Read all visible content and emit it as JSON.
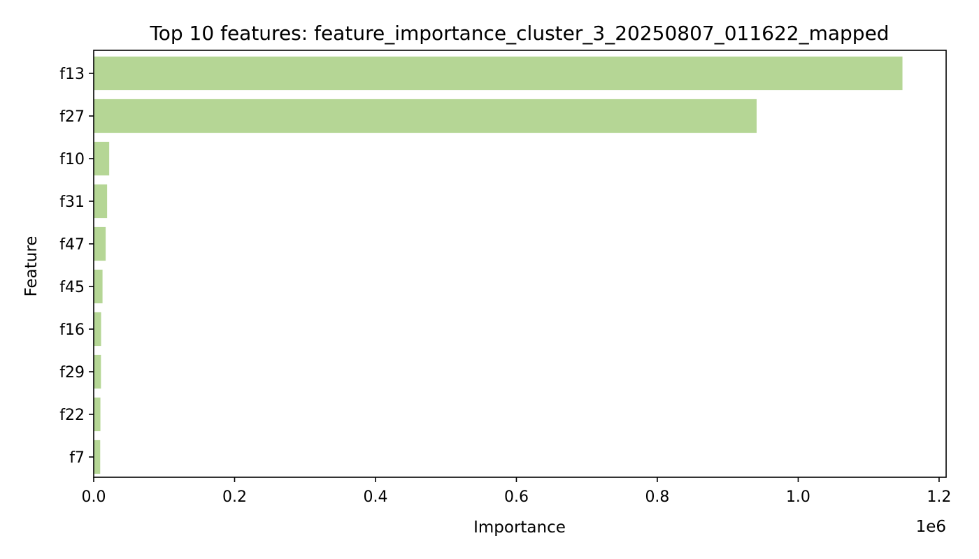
{
  "chart_data": {
    "type": "bar",
    "orientation": "horizontal",
    "title": "Top 10 features: feature_importance_cluster_3_20250807_011622_mapped",
    "xlabel": "Importance",
    "ylabel": "Feature",
    "x_offset_label": "1e6",
    "x_multiplier": 1000000,
    "categories": [
      "f13",
      "f27",
      "f10",
      "f31",
      "f47",
      "f45",
      "f16",
      "f29",
      "f22",
      "f7"
    ],
    "values": [
      1148000,
      941000,
      22000,
      19000,
      17000,
      12500,
      10500,
      10300,
      9500,
      9200
    ],
    "xlim": [
      0,
      1210000
    ],
    "xticks": [
      0,
      200000,
      400000,
      600000,
      800000,
      1000000,
      1200000
    ],
    "xtick_labels": [
      "0.0",
      "0.2",
      "0.4",
      "0.6",
      "0.8",
      "1.0",
      "1.2"
    ],
    "bar_color": "#b5d695",
    "grid": false,
    "legend": "none"
  }
}
